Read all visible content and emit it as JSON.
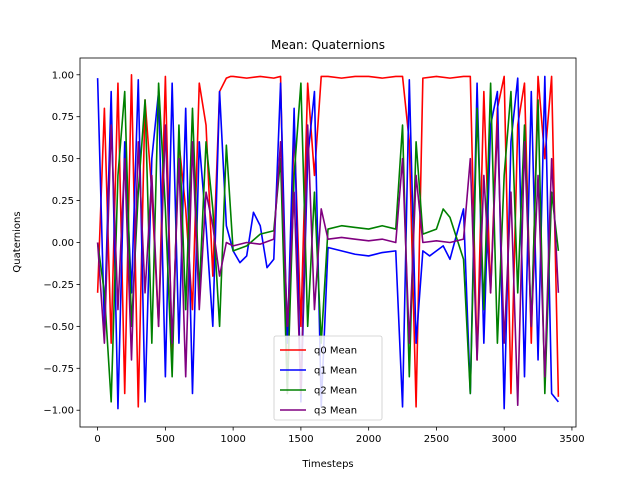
{
  "chart_data": {
    "type": "line",
    "title": "Mean: Quaternions",
    "xlabel": "Timesteps",
    "ylabel": "Quaternions",
    "xlim": [
      -130,
      3530
    ],
    "ylim": [
      -1.1,
      1.1
    ],
    "xticks": [
      0,
      500,
      1000,
      1500,
      2000,
      2500,
      3000,
      3500
    ],
    "xtick_labels": [
      "0",
      "500",
      "1000",
      "1500",
      "2000",
      "2500",
      "3000",
      "3500"
    ],
    "yticks": [
      -1.0,
      -0.75,
      -0.5,
      -0.25,
      0.0,
      0.25,
      0.5,
      0.75,
      1.0
    ],
    "ytick_labels": [
      "−1.00",
      "−0.75",
      "−0.50",
      "−0.25",
      "0.00",
      "0.25",
      "0.50",
      "0.75",
      "1.00"
    ],
    "grid": false,
    "legend_position": "lower center",
    "series": [
      {
        "name": "q0 Mean",
        "color": "#ff0000",
        "x": [
          0,
          50,
          100,
          150,
          200,
          250,
          300,
          350,
          400,
          450,
          500,
          550,
          600,
          650,
          700,
          750,
          800,
          850,
          900,
          950,
          980,
          1000,
          1100,
          1200,
          1300,
          1350,
          1400,
          1450,
          1500,
          1550,
          1600,
          1650,
          1700,
          1800,
          1900,
          2000,
          2100,
          2200,
          2250,
          2300,
          2350,
          2400,
          2500,
          2600,
          2700,
          2750,
          2800,
          2850,
          2900,
          2950,
          3000,
          3050,
          3100,
          3150,
          3200,
          3250,
          3300,
          3350,
          3400
        ],
        "y": [
          -0.3,
          0.8,
          -0.6,
          0.95,
          -0.9,
          1.0,
          -0.98,
          0.85,
          0.3,
          -0.5,
          0.99,
          -0.7,
          0.6,
          0.2,
          -0.4,
          0.95,
          0.7,
          -0.2,
          0.9,
          0.98,
          0.99,
          0.99,
          0.98,
          0.99,
          0.98,
          0.99,
          -0.9,
          0.7,
          -0.5,
          0.95,
          0.4,
          0.99,
          0.99,
          0.98,
          0.99,
          0.99,
          0.98,
          0.99,
          0.99,
          0.6,
          -0.98,
          0.98,
          0.99,
          0.98,
          0.99,
          0.99,
          -0.7,
          0.9,
          -0.3,
          0.8,
          0.99,
          -0.9,
          0.7,
          0.95,
          -0.6,
          0.99,
          0.5,
          0.99,
          -0.92
        ]
      },
      {
        "name": "q1 Mean",
        "color": "#0000ff",
        "x": [
          0,
          50,
          100,
          150,
          200,
          250,
          300,
          350,
          400,
          450,
          500,
          550,
          600,
          650,
          700,
          750,
          800,
          850,
          900,
          950,
          1000,
          1050,
          1100,
          1150,
          1200,
          1250,
          1300,
          1350,
          1400,
          1450,
          1500,
          1550,
          1600,
          1650,
          1700,
          1800,
          1900,
          2000,
          2100,
          2200,
          2250,
          2300,
          2350,
          2400,
          2450,
          2500,
          2550,
          2600,
          2650,
          2700,
          2750,
          2800,
          2850,
          2900,
          2950,
          3000,
          3050,
          3100,
          3150,
          3200,
          3250,
          3300,
          3350,
          3400
        ],
        "y": [
          0.98,
          -0.5,
          0.9,
          -0.99,
          0.6,
          -0.3,
          0.97,
          -0.95,
          0.5,
          0.9,
          -0.8,
          0.95,
          -0.6,
          0.8,
          -0.9,
          0.6,
          0.1,
          -0.5,
          0.9,
          0.1,
          -0.05,
          -0.12,
          -0.08,
          0.18,
          0.1,
          -0.15,
          -0.1,
          0.95,
          -0.6,
          0.8,
          -0.95,
          0.5,
          0.9,
          -0.98,
          -0.03,
          -0.05,
          -0.07,
          -0.08,
          -0.06,
          -0.05,
          -0.98,
          0.97,
          -0.6,
          -0.05,
          -0.08,
          -0.05,
          -0.02,
          -0.1,
          0.05,
          0.2,
          -0.9,
          0.95,
          -0.6,
          0.7,
          0.9,
          -0.99,
          0.6,
          0.98,
          -0.8,
          0.9,
          -0.7,
          0.99,
          -0.9,
          -0.95
        ]
      },
      {
        "name": "q2 Mean",
        "color": "#008000",
        "x": [
          0,
          50,
          100,
          150,
          200,
          250,
          300,
          350,
          400,
          450,
          500,
          550,
          600,
          650,
          700,
          750,
          800,
          850,
          900,
          950,
          1000,
          1100,
          1200,
          1300,
          1350,
          1400,
          1450,
          1500,
          1550,
          1600,
          1650,
          1700,
          1800,
          1900,
          2000,
          2100,
          2200,
          2250,
          2300,
          2350,
          2400,
          2500,
          2550,
          2600,
          2700,
          2750,
          2800,
          2850,
          2900,
          2950,
          3000,
          3050,
          3100,
          3150,
          3200,
          3250,
          3300,
          3350,
          3400
        ],
        "y": [
          0.0,
          -0.3,
          -0.95,
          0.4,
          0.9,
          -0.5,
          0.3,
          0.85,
          -0.6,
          0.95,
          0.2,
          -0.8,
          0.7,
          -0.4,
          0.8,
          -0.3,
          0.6,
          0.2,
          -0.5,
          0.58,
          -0.05,
          -0.02,
          0.05,
          0.07,
          0.5,
          -0.9,
          0.4,
          0.95,
          -0.5,
          0.3,
          -0.6,
          0.08,
          0.1,
          0.09,
          0.08,
          0.1,
          0.08,
          0.7,
          -0.8,
          0.6,
          0.05,
          0.08,
          0.2,
          0.15,
          -0.1,
          -0.9,
          0.8,
          -0.4,
          0.95,
          -0.6,
          0.4,
          0.9,
          -0.3,
          0.7,
          -0.5,
          0.85,
          -0.9,
          0.3,
          -0.05
        ]
      },
      {
        "name": "q3 Mean",
        "color": "#800080",
        "x": [
          0,
          50,
          100,
          150,
          200,
          250,
          300,
          350,
          400,
          450,
          500,
          550,
          600,
          650,
          700,
          750,
          800,
          850,
          900,
          950,
          1000,
          1100,
          1200,
          1300,
          1350,
          1400,
          1450,
          1500,
          1550,
          1600,
          1650,
          1700,
          1800,
          1900,
          2000,
          2100,
          2200,
          2250,
          2300,
          2350,
          2400,
          2500,
          2600,
          2700,
          2750,
          2800,
          2850,
          2900,
          2950,
          3000,
          3050,
          3100,
          3150,
          3200,
          3250,
          3300,
          3350,
          3400
        ],
        "y": [
          0.0,
          -0.6,
          0.7,
          -0.4,
          0.5,
          -0.7,
          0.6,
          -0.3,
          0.4,
          -0.5,
          0.7,
          -0.6,
          0.5,
          -0.8,
          0.6,
          -0.4,
          0.3,
          0.1,
          -0.2,
          0.0,
          -0.02,
          0.0,
          -0.01,
          0.02,
          0.6,
          -0.5,
          0.3,
          -0.9,
          0.7,
          -0.4,
          0.2,
          0.02,
          0.03,
          0.02,
          0.01,
          0.02,
          0.0,
          0.5,
          -0.6,
          0.4,
          0.0,
          0.01,
          0.0,
          0.02,
          0.5,
          -0.7,
          0.4,
          -0.3,
          0.7,
          -0.6,
          0.3,
          -0.97,
          0.6,
          -0.5,
          0.4,
          -0.8,
          0.5,
          -0.3
        ]
      }
    ]
  }
}
